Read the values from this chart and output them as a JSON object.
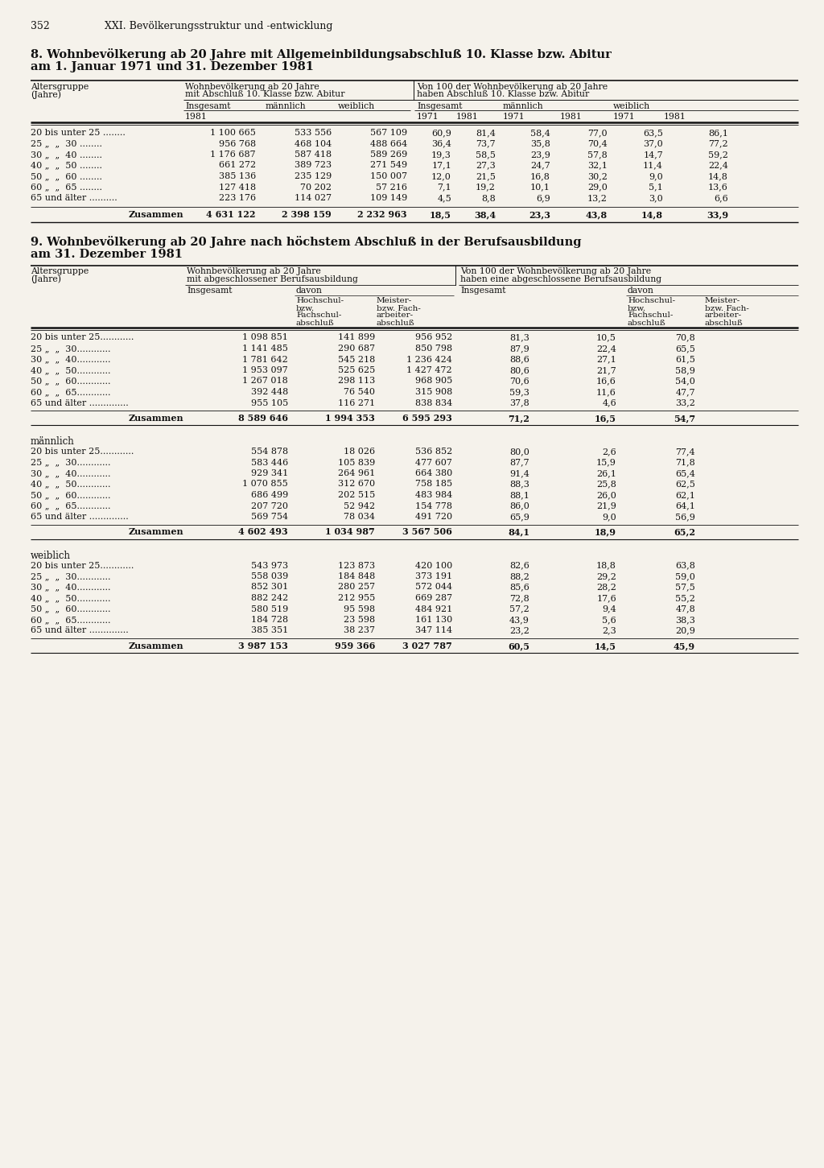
{
  "page_number": "352",
  "page_header": "XXI. Bevölkerungsstruktur und -entwicklung",
  "bg_color": "#f5f2eb",
  "table1_title_line1": "8. Wohnbevölkerung ab 20 Jahre mit Allgemeinbildungsabschluß 10. Klasse bzw. Abitur",
  "table1_title_line2": "am 1. Januar 1971 und 31. Dezember 1981",
  "table2_title_line1": "9. Wohnbevölkerung ab 20 Jahre nach höchstem Abschluß in der Berufsausbildung",
  "table2_title_line2": "am 31. Dezember 1981",
  "table1_rows": [
    [
      "20 bis unter 25 ........",
      "1 100 665",
      "533 556",
      "567 109",
      "60,9",
      "81,4",
      "58,4",
      "77,0",
      "63,5",
      "86,1"
    ],
    [
      "25 „  „  30 ........",
      "956 768",
      "468 104",
      "488 664",
      "36,4",
      "73,7",
      "35,8",
      "70,4",
      "37,0",
      "77,2"
    ],
    [
      "30 „  „  40 ........",
      "1 176 687",
      "587 418",
      "589 269",
      "19,3",
      "58,5",
      "23,9",
      "57,8",
      "14,7",
      "59,2"
    ],
    [
      "40 „  „  50 ........",
      "661 272",
      "389 723",
      "271 549",
      "17,1",
      "27,3",
      "24,7",
      "32,1",
      "11,4",
      "22,4"
    ],
    [
      "50 „  „  60 ........",
      "385 136",
      "235 129",
      "150 007",
      "12,0",
      "21,5",
      "16,8",
      "30,2",
      "9,0",
      "14,8"
    ],
    [
      "60 „  „  65 ........",
      "127 418",
      "70 202",
      "57 216",
      "7,1",
      "19,2",
      "10,1",
      "29,0",
      "5,1",
      "13,6"
    ],
    [
      "65 und älter ..........",
      "223 176",
      "114 027",
      "109 149",
      "4,5",
      "8,8",
      "6,9",
      "13,2",
      "3,0",
      "6,6"
    ]
  ],
  "table1_sum_row": [
    "Zusammen",
    "4 631 122",
    "2 398 159",
    "2 232 963",
    "18,5",
    "38,4",
    "23,3",
    "43,8",
    "14,8",
    "33,9"
  ],
  "table2_sections": [
    {
      "section_label": "",
      "rows": [
        [
          "20 bis unter 25............",
          "1 098 851",
          "141 899",
          "956 952",
          "81,3",
          "10,5",
          "70,8"
        ],
        [
          "25 „  „  30............",
          "1 141 485",
          "290 687",
          "850 798",
          "87,9",
          "22,4",
          "65,5"
        ],
        [
          "30 „  „  40............",
          "1 781 642",
          "545 218",
          "1 236 424",
          "88,6",
          "27,1",
          "61,5"
        ],
        [
          "40 „  „  50............",
          "1 953 097",
          "525 625",
          "1 427 472",
          "80,6",
          "21,7",
          "58,9"
        ],
        [
          "50 „  „  60............",
          "1 267 018",
          "298 113",
          "968 905",
          "70,6",
          "16,6",
          "54,0"
        ],
        [
          "60 „  „  65............",
          "392 448",
          "76 540",
          "315 908",
          "59,3",
          "11,6",
          "47,7"
        ],
        [
          "65 und älter ..............",
          "955 105",
          "116 271",
          "838 834",
          "37,8",
          "4,6",
          "33,2"
        ]
      ],
      "sum_row": [
        "Zusammen",
        "8 589 646",
        "1 994 353",
        "6 595 293",
        "71,2",
        "16,5",
        "54,7"
      ]
    },
    {
      "section_label": "männlich",
      "rows": [
        [
          "20 bis unter 25............",
          "554 878",
          "18 026",
          "536 852",
          "80,0",
          "2,6",
          "77,4"
        ],
        [
          "25 „  „  30............",
          "583 446",
          "105 839",
          "477 607",
          "87,7",
          "15,9",
          "71,8"
        ],
        [
          "30 „  „  40............",
          "929 341",
          "264 961",
          "664 380",
          "91,4",
          "26,1",
          "65,4"
        ],
        [
          "40 „  „  50............",
          "1 070 855",
          "312 670",
          "758 185",
          "88,3",
          "25,8",
          "62,5"
        ],
        [
          "50 „  „  60............",
          "686 499",
          "202 515",
          "483 984",
          "88,1",
          "26,0",
          "62,1"
        ],
        [
          "60 „  „  65............",
          "207 720",
          "52 942",
          "154 778",
          "86,0",
          "21,9",
          "64,1"
        ],
        [
          "65 und älter ..............",
          "569 754",
          "78 034",
          "491 720",
          "65,9",
          "9,0",
          "56,9"
        ]
      ],
      "sum_row": [
        "Zusammen",
        "4 602 493",
        "1 034 987",
        "3 567 506",
        "84,1",
        "18,9",
        "65,2"
      ]
    },
    {
      "section_label": "weiblich",
      "rows": [
        [
          "20 bis unter 25............",
          "543 973",
          "123 873",
          "420 100",
          "82,6",
          "18,8",
          "63,8"
        ],
        [
          "25 „  „  30............",
          "558 039",
          "184 848",
          "373 191",
          "88,2",
          "29,2",
          "59,0"
        ],
        [
          "30 „  „  40............",
          "852 301",
          "280 257",
          "572 044",
          "85,6",
          "28,2",
          "57,5"
        ],
        [
          "40 „  „  50............",
          "882 242",
          "212 955",
          "669 287",
          "72,8",
          "17,6",
          "55,2"
        ],
        [
          "50 „  „  60............",
          "580 519",
          "95 598",
          "484 921",
          "57,2",
          "9,4",
          "47,8"
        ],
        [
          "60 „  „  65............",
          "184 728",
          "23 598",
          "161 130",
          "43,9",
          "5,6",
          "38,3"
        ],
        [
          "65 und älter ..............",
          "385 351",
          "38 237",
          "347 114",
          "23,2",
          "2,3",
          "20,9"
        ]
      ],
      "sum_row": [
        "Zusammen",
        "3 987 153",
        "959 366",
        "3 027 787",
        "60,5",
        "14,5",
        "45,9"
      ]
    }
  ]
}
